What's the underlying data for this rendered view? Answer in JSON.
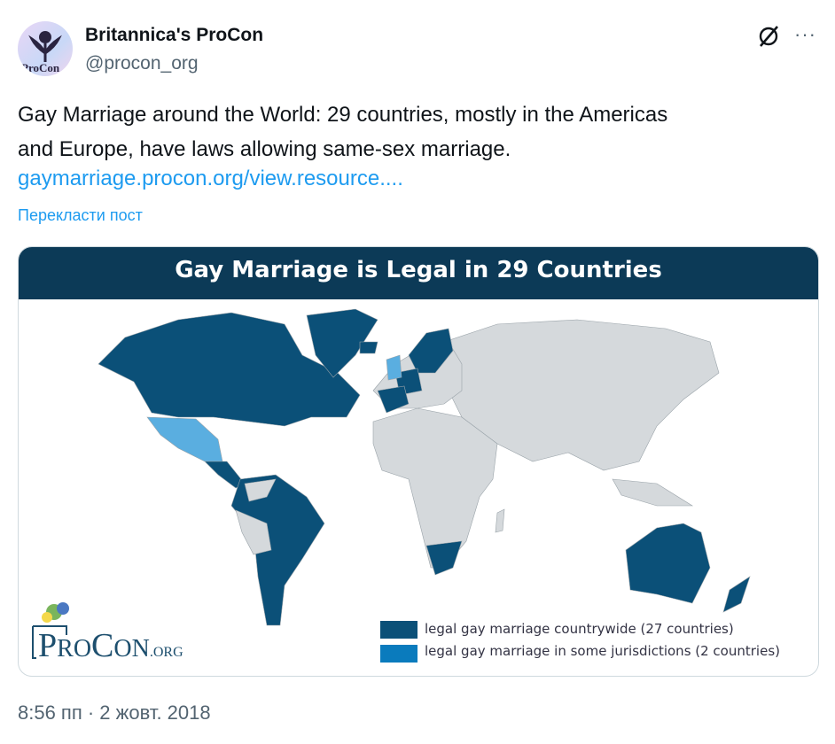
{
  "author": {
    "name": "Britannica's ProCon",
    "handle": "@procon_org",
    "avatar_text": "ProCon"
  },
  "icons": {
    "grok": "grok-slash-icon",
    "more": "more-dots-icon"
  },
  "tweet": {
    "line1": "Gay Marriage around the World: 29 countries, mostly in the Americas",
    "line2": "and Europe, have laws allowing same-sex marriage.",
    "link": "gaymarriage.procon.org/view.resource....",
    "translate": "Перекласти пост"
  },
  "card": {
    "title": "Gay Marriage is Legal in 29 Countries",
    "logo_text": "ProCon.org",
    "legend": [
      {
        "label": "legal gay marriage countrywide (27 countries)",
        "color": "#0b5078"
      },
      {
        "label": "legal gay marriage in some jurisdictions (2 countries)",
        "color": "#0a7bbd"
      }
    ],
    "colors": {
      "legal": "#0b5078",
      "partial": "#5aaee0",
      "other": "#d5d9dc",
      "header": "#0c3a57"
    }
  },
  "timestamp": "8:56 пп · 2 жовт. 2018"
}
